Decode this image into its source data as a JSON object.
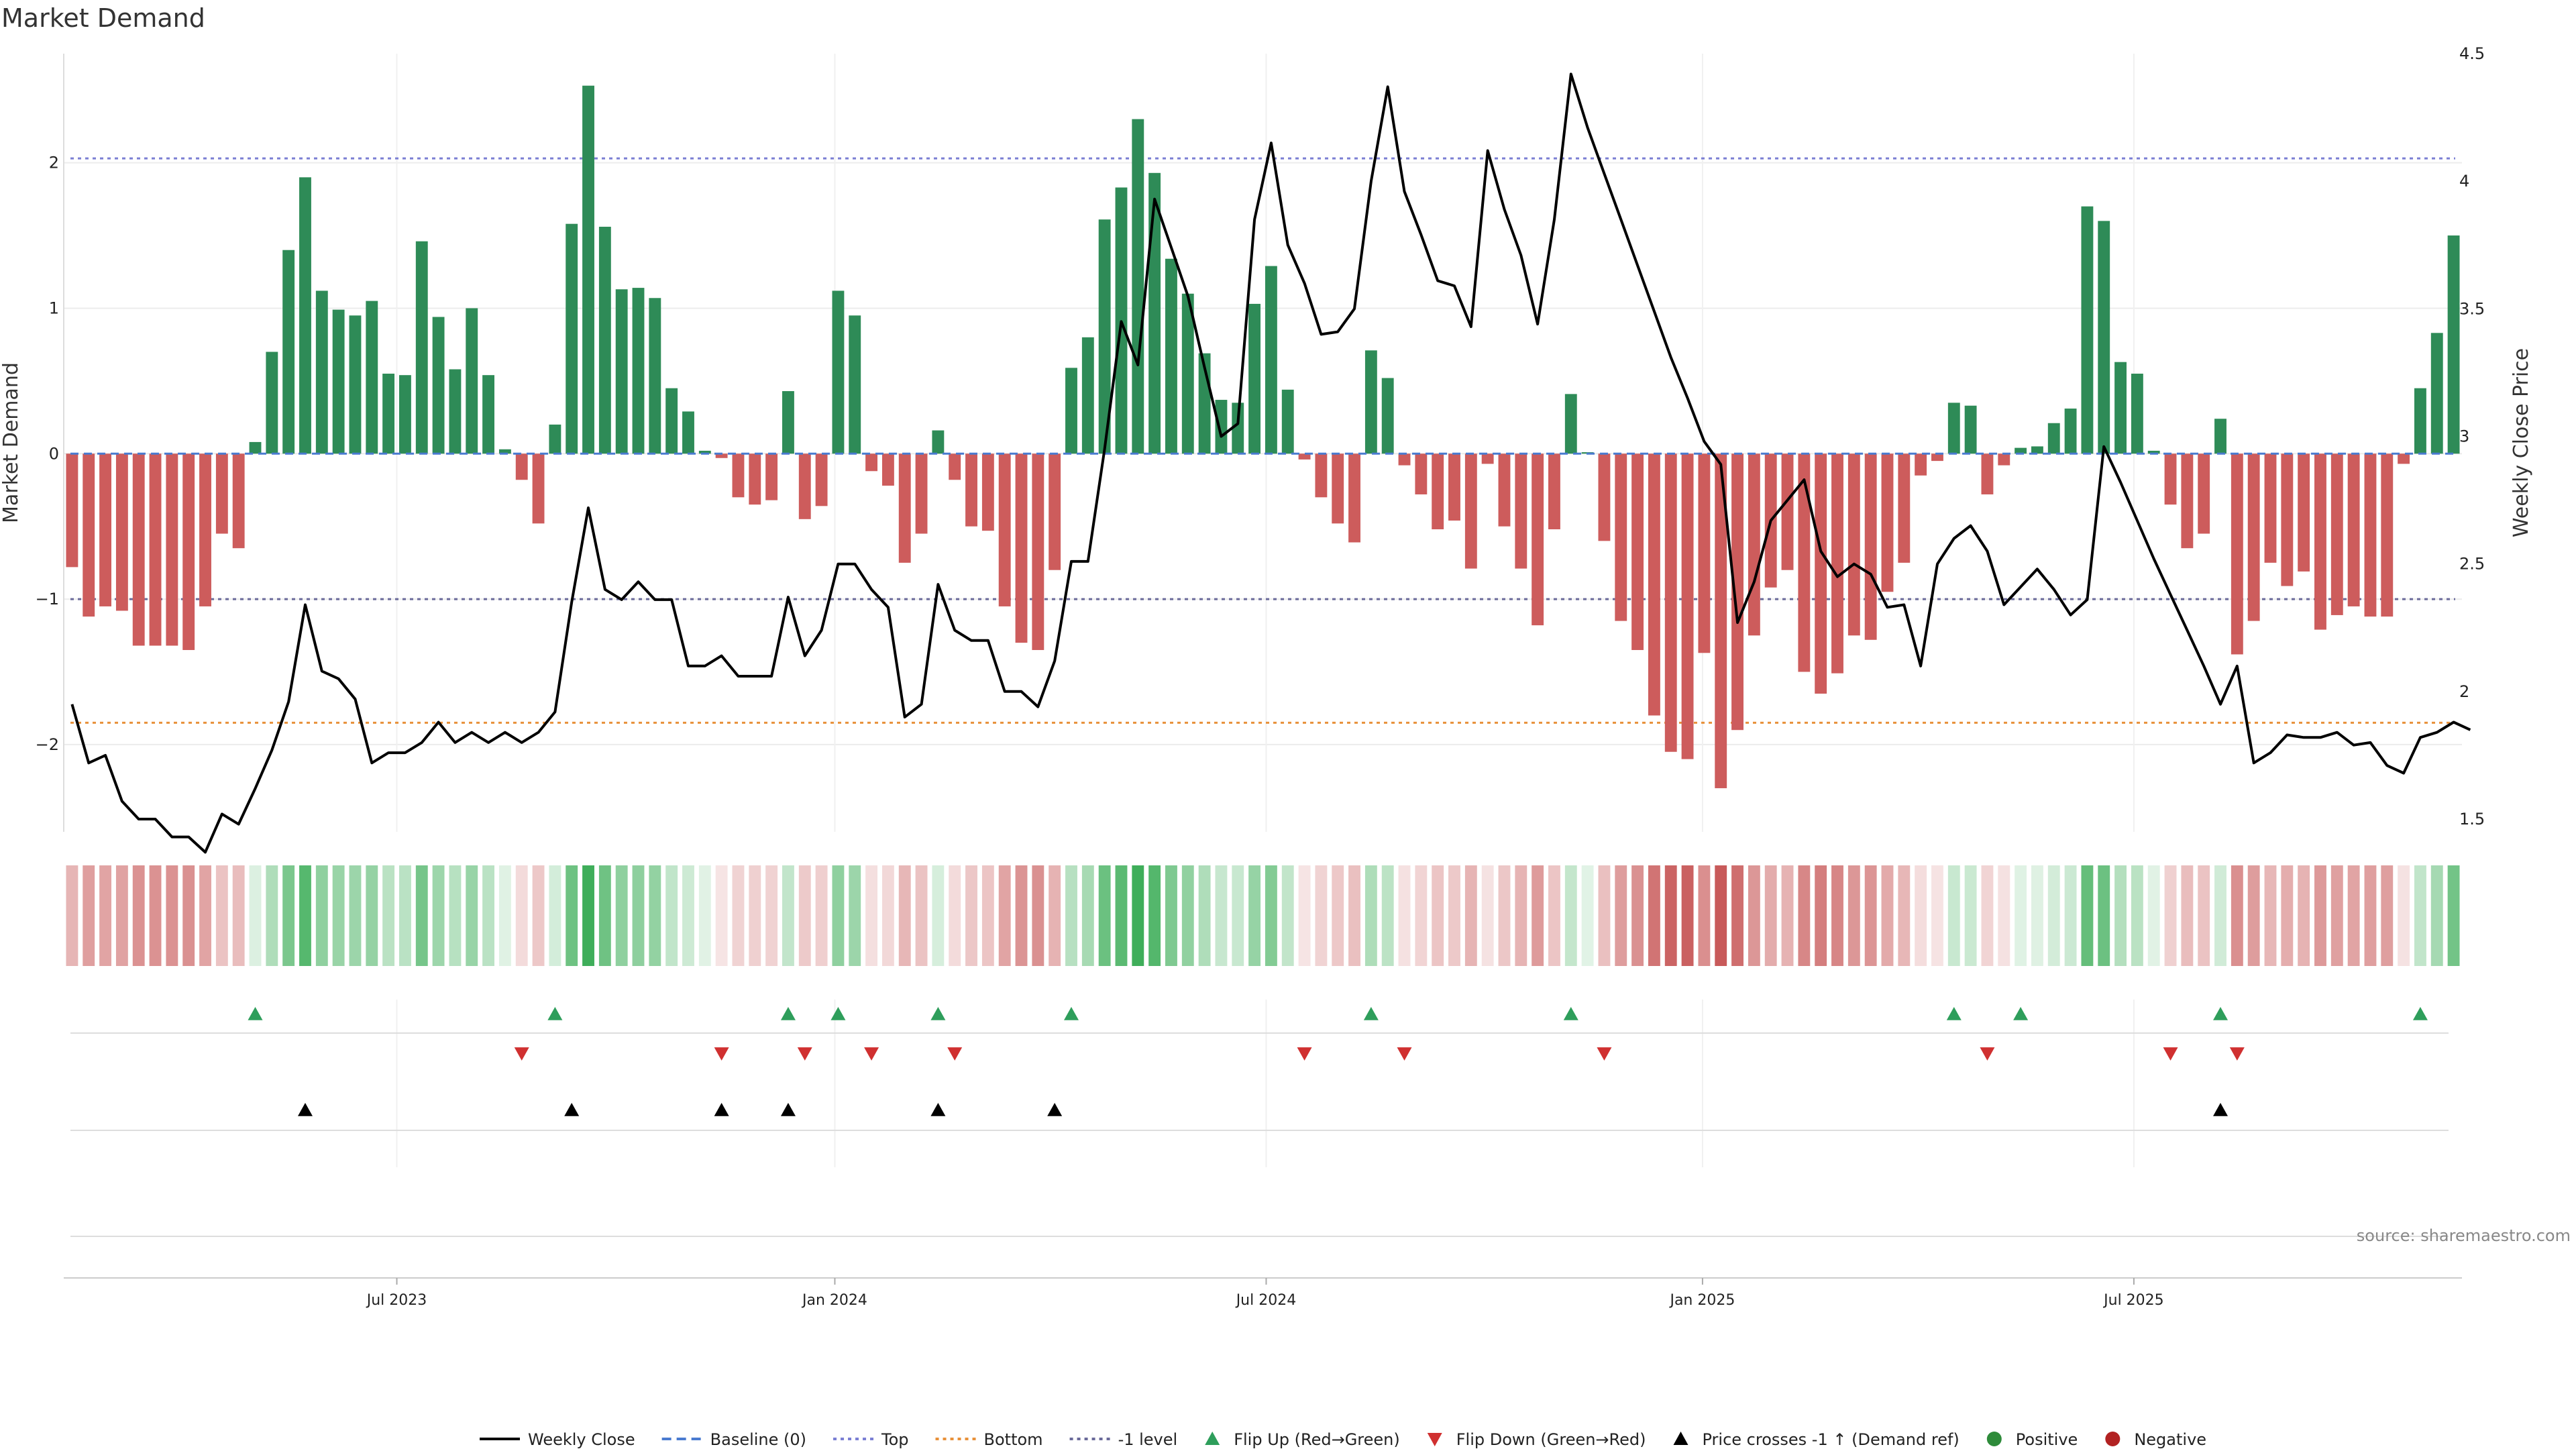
{
  "title": "Market Demand",
  "source": "source: sharemaestro.com",
  "chart_data": {
    "type": "bar",
    "ylabel_left": "Market Demand",
    "ylabel_right": "Weekly Close Price",
    "y_left_ticks": [
      -2,
      -1,
      0,
      1,
      2
    ],
    "y_left_tick_labels": [
      "−2",
      "−1",
      "0",
      "1",
      "2"
    ],
    "y_left_range": [
      -2.6,
      2.75
    ],
    "y_right_ticks": [
      1.5,
      2,
      2.5,
      3,
      3.5,
      4,
      4.5
    ],
    "y_right_tick_labels": [
      "1.5",
      "2",
      "2.5",
      "3",
      "3.5",
      "4",
      "4.5"
    ],
    "y_right_range": [
      1.45,
      4.5
    ],
    "x_tick_labels": [
      "Jul 2023",
      "Jan 2024",
      "Jul 2024",
      "Jan 2025",
      "Jul 2025"
    ],
    "x_tick_weeks": [
      20,
      46.3,
      72.2,
      98.4,
      124.3
    ],
    "reference_lines": {
      "top": 2.03,
      "bottom": -1.85,
      "minus_one": -1.0,
      "baseline": 0
    },
    "demand": [
      -0.78,
      -1.12,
      -1.05,
      -1.08,
      -1.32,
      -1.32,
      -1.32,
      -1.35,
      -1.05,
      -0.55,
      -0.65,
      0.08,
      0.7,
      1.4,
      1.9,
      1.12,
      0.99,
      0.95,
      1.05,
      0.55,
      0.54,
      1.46,
      0.94,
      0.58,
      1.0,
      0.54,
      0.03,
      -0.18,
      -0.48,
      0.2,
      1.58,
      2.53,
      1.56,
      1.13,
      1.14,
      1.07,
      0.45,
      0.29,
      0.02,
      -0.03,
      -0.3,
      -0.35,
      -0.32,
      0.43,
      -0.45,
      -0.36,
      1.12,
      0.95,
      -0.12,
      -0.22,
      -0.75,
      -0.55,
      0.16,
      -0.18,
      -0.5,
      -0.53,
      -1.05,
      -1.3,
      -1.35,
      -0.8,
      0.59,
      0.8,
      1.61,
      1.83,
      2.3,
      1.93,
      1.34,
      1.1,
      0.69,
      0.37,
      0.35,
      1.03,
      1.29,
      0.44,
      -0.04,
      -0.3,
      -0.48,
      -0.61,
      0.71,
      0.52,
      -0.08,
      -0.28,
      -0.52,
      -0.46,
      -0.79,
      -0.07,
      -0.5,
      -0.79,
      -1.18,
      -0.52,
      0.41,
      0.01,
      -0.6,
      -1.15,
      -1.35,
      -1.8,
      -2.05,
      -2.1,
      -1.37,
      -2.3,
      -1.9,
      -1.25,
      -0.92,
      -0.8,
      -1.5,
      -1.65,
      -1.51,
      -1.25,
      -1.28,
      -0.95,
      -0.75,
      -0.15,
      -0.05,
      0.35,
      0.33,
      -0.28,
      -0.08,
      0.04,
      0.05,
      0.21,
      0.31,
      1.7,
      1.6,
      0.63,
      0.55,
      0.02,
      -0.35,
      -0.65,
      -0.55,
      0.24,
      -1.38,
      -1.15,
      -0.75,
      -0.91,
      -0.81,
      -1.21,
      -1.11,
      -1.05,
      -1.12,
      -1.12,
      -0.07,
      0.45,
      0.83,
      1.5
    ],
    "weekly_close": [
      1.95,
      1.72,
      1.75,
      1.57,
      1.5,
      1.5,
      1.43,
      1.43,
      1.37,
      1.52,
      1.48,
      1.62,
      1.77,
      1.96,
      2.34,
      2.08,
      2.05,
      1.97,
      1.72,
      1.76,
      1.76,
      1.8,
      1.88,
      1.8,
      1.84,
      1.8,
      1.84,
      1.8,
      1.84,
      1.92,
      2.35,
      2.72,
      2.4,
      2.36,
      2.43,
      2.36,
      2.36,
      2.1,
      2.1,
      2.14,
      2.06,
      2.06,
      2.06,
      2.37,
      2.14,
      2.24,
      2.5,
      2.5,
      2.4,
      2.33,
      1.9,
      1.95,
      2.42,
      2.24,
      2.2,
      2.2,
      2.0,
      2.0,
      1.94,
      2.12,
      2.51,
      2.51,
      2.95,
      3.45,
      3.28,
      3.93,
      3.74,
      3.55,
      3.27,
      3.0,
      3.05,
      3.85,
      4.15,
      3.75,
      3.6,
      3.4,
      3.41,
      3.5,
      4.0,
      4.37,
      3.96,
      3.79,
      3.61,
      3.59,
      3.43,
      4.12,
      3.89,
      3.71,
      3.44,
      3.85,
      4.42,
      4.21,
      4.03,
      3.85,
      3.67,
      3.49,
      3.31,
      3.15,
      2.98,
      2.89,
      2.27,
      2.43,
      2.67,
      2.75,
      2.83,
      2.55,
      2.45,
      2.5,
      2.46,
      2.33,
      2.34,
      2.1,
      2.5,
      2.6,
      2.65,
      2.55,
      2.34,
      2.41,
      2.48,
      2.4,
      2.3,
      2.36,
      2.96,
      2.82,
      2.67,
      2.52,
      2.38,
      2.24,
      2.1,
      1.95,
      2.1,
      1.72,
      1.76,
      1.83,
      1.82,
      1.82,
      1.84,
      1.79,
      1.8,
      1.71,
      1.68,
      1.82,
      1.84,
      1.88,
      1.85
    ],
    "flip_up_weeks": [
      11,
      29,
      43,
      46,
      52,
      60,
      78,
      90,
      113,
      117,
      129,
      141
    ],
    "flip_down_weeks": [
      27,
      39,
      44,
      48,
      53,
      74,
      80,
      92,
      115,
      126,
      130
    ],
    "price_cross_weeks": [
      14,
      30,
      39,
      43,
      52,
      59,
      129
    ],
    "legend": [
      {
        "label": "Weekly Close",
        "kind": "line",
        "color": "#000000"
      },
      {
        "label": "Baseline (0)",
        "kind": "dash",
        "color": "#4a7bd0"
      },
      {
        "label": "Top",
        "kind": "dot",
        "color": "#7b7fd4"
      },
      {
        "label": "Bottom",
        "kind": "dot",
        "color": "#e8913a"
      },
      {
        "label": "-1 level",
        "kind": "dot",
        "color": "#6a6a9a"
      },
      {
        "label": "Flip Up (Red→Green)",
        "kind": "tri-up",
        "color": "#2e9e5b"
      },
      {
        "label": "Flip Down (Green→Red)",
        "kind": "tri-down",
        "color": "#d03030"
      },
      {
        "label": "Price crosses -1 ↑ (Demand ref)",
        "kind": "tri-up",
        "color": "#000000"
      },
      {
        "label": "Positive",
        "kind": "circle",
        "color": "#2e8b3a"
      },
      {
        "label": "Negative",
        "kind": "circle",
        "color": "#b22222"
      }
    ],
    "colors": {
      "positive_bar": "#2e8b57",
      "negative_bar": "#cd5c5c",
      "line": "#000000"
    }
  }
}
